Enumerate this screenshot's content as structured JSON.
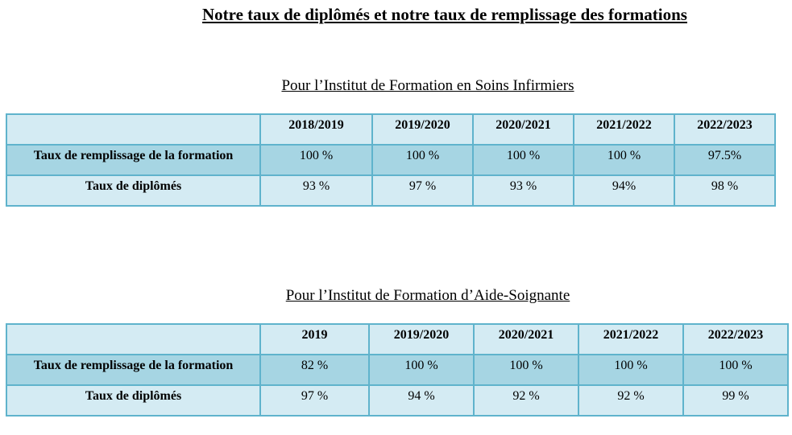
{
  "title": "Notre taux de diplômés et notre taux de remplissage des formations",
  "tables": [
    {
      "caption": "Pour l’Institut de Formation en Soins Infirmiers",
      "headers": [
        "",
        "2018/2019",
        "2019/2020",
        "2020/2021",
        "2021/2022",
        "2022/2023"
      ],
      "rows": [
        {
          "label": "Taux de remplissage de la formation",
          "values": [
            "100 %",
            "100 %",
            "100 %",
            "100 %",
            "97.5%"
          ]
        },
        {
          "label": "Taux de diplômés",
          "values": [
            "93 %",
            "97 %",
            "93 %",
            "94%",
            "98 %"
          ]
        }
      ]
    },
    {
      "caption": "Pour l’Institut de Formation d’Aide-Soignante",
      "headers": [
        "",
        "2019",
        "2019/2020",
        "2020/2021",
        "2021/2022",
        "2022/2023"
      ],
      "rows": [
        {
          "label": "Taux de remplissage de la formation",
          "values": [
            "82 %",
            "100 %",
            "100 %",
            "100 %",
            "100 %"
          ]
        },
        {
          "label": "Taux de diplômés",
          "values": [
            "97 %",
            "94 %",
            "92 %",
            "92 %",
            "99 %"
          ]
        }
      ]
    }
  ],
  "colors": {
    "border": "#5fb3cc",
    "light_fill": "#d4ebf3",
    "dark_fill": "#a6d5e3"
  }
}
